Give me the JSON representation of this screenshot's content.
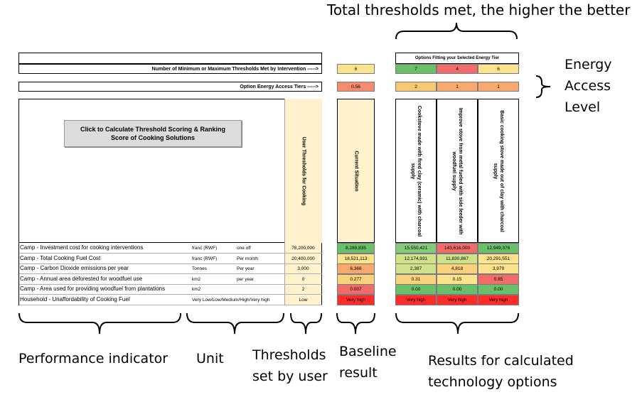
{
  "annotations": {
    "top": "Total thresholds met, the higher the better",
    "energy_access_level": [
      "Energy",
      "Access",
      "Level"
    ],
    "performance_indicator": "Performance indicator",
    "unit": "Unit",
    "thresholds": [
      "Thresholds",
      "set by user"
    ],
    "baseline": [
      "Baseline",
      "result"
    ],
    "results": [
      "Results for calculated",
      "technology options"
    ]
  },
  "sheet": {
    "options_header": "Options Fitting your Selected Energy Tier",
    "thresholds_met_label": "Number of Minimum or Maximum Thresholds Met by Intervention ----->",
    "tiers_label": "Option Energy Access Tiers ----->",
    "calc_button": "Click to Calculate Threshold Scoring & Ranking Score of Cooking Solutions",
    "user_thresholds_header": "User Thresholds for Cooking",
    "current_situation_header": "Current Situation",
    "baseline_thresholds_met": "6",
    "baseline_tier": "0.56",
    "options": [
      {
        "name": "Cookstove made with fired clay (ceramic) with charcoal supply",
        "thresholds_met": "7",
        "tier": "2",
        "met_color": "#6abf69",
        "tier_color": "#f7c873"
      },
      {
        "name": "Improve stove from metal fueled with side feeder with woodfuel supply",
        "thresholds_met": "4",
        "tier": "1",
        "met_color": "#f26b6b",
        "tier_color": "#f6a86e"
      },
      {
        "name": "Basic cooking stove made out of clay with charcoal supply",
        "thresholds_met": "6",
        "tier": "1",
        "met_color": "#fbe28c",
        "tier_color": "#f6a86e"
      }
    ],
    "rows": [
      {
        "indicator": "Camp - Investment cost for cooking interventions",
        "unit": "franc (RWF)",
        "period": "one off",
        "threshold": "78,200,000",
        "baseline": "8,289,835",
        "baseline_color": "#6abf69",
        "values": [
          "15,550,421",
          "143,616,000",
          "12,949,376"
        ],
        "colors": [
          "#86c97a",
          "#f26b6b",
          "#6abf69"
        ]
      },
      {
        "indicator": "Camp - Total Cooking Fuel Cost",
        "unit": "franc (RWF)",
        "period": "Per month",
        "threshold": "20,400,000",
        "baseline": "18,521,113",
        "baseline_color": "#fbe28c",
        "values": [
          "12,174,931",
          "11,830,867",
          "20,291,551"
        ],
        "colors": [
          "#cfe28a",
          "#cfe28a",
          "#fbe28c"
        ]
      },
      {
        "indicator": "Camp - Carbon Dioxide emissions per year",
        "unit": "Tonnes",
        "period": "Per year",
        "threshold": "3,000",
        "baseline": "6,366",
        "baseline_color": "#f6a86e",
        "values": [
          "2,387",
          "4,818",
          "3,979"
        ],
        "colors": [
          "#cfe28a",
          "#fbd27c",
          "#fbe28c"
        ]
      },
      {
        "indicator": "Camp - Annual area deforested for woodfuel use",
        "unit": "km2",
        "period": "per year",
        "threshold": "0",
        "baseline": "0.277",
        "baseline_color": "#fbd27c",
        "values": [
          "0.31",
          "0.15",
          "0.85"
        ],
        "colors": [
          "#fbd27c",
          "#fbe28c",
          "#f26b6b"
        ]
      },
      {
        "indicator": "Camp - Area used for providing woodfuel from plantations",
        "unit": "km2",
        "period": "",
        "threshold": "2",
        "baseline": "0.007",
        "baseline_color": "#f26b6b",
        "values": [
          "0.00",
          "0.00",
          "0.00"
        ],
        "colors": [
          "#6abf69",
          "#6abf69",
          "#6abf69"
        ]
      },
      {
        "indicator": "Household - Unaffordability of Cooking Fuel",
        "unit": "Very Low/Low/Medium/High/Very high",
        "period": "",
        "threshold": "Low",
        "baseline": "Very high",
        "baseline_color": "#ff2a2a",
        "values": [
          "Very high",
          "Very high",
          "Very high"
        ],
        "colors": [
          "#ff2a2a",
          "#ff2a2a",
          "#ff2a2a"
        ]
      }
    ]
  }
}
